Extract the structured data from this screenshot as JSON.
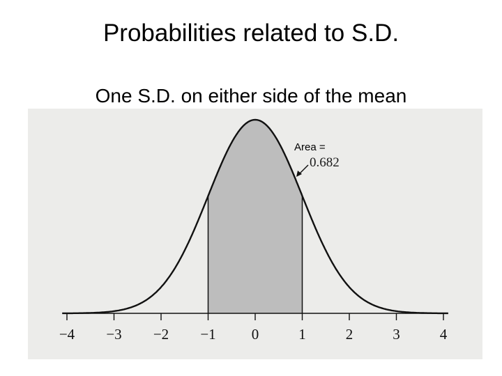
{
  "slide": {
    "title": "Probabilities related to S.D.",
    "subtitle": "One S.D. on either side of the mean"
  },
  "annotation": {
    "area_label": "Area =",
    "area_value": "0.682"
  },
  "chart_data": {
    "type": "area",
    "curve": "standard normal density",
    "shaded_interval": [
      -1,
      1
    ],
    "shaded_area": 0.682,
    "x_ticks": [
      -4,
      -3,
      -2,
      -1,
      0,
      1,
      2,
      3,
      4
    ],
    "x_tick_labels": [
      "−4",
      "−3",
      "−2",
      "−1",
      "0",
      "1",
      "2",
      "3",
      "4"
    ],
    "xlim": [
      -4.1,
      4.1
    ],
    "grid": false
  },
  "colors": {
    "curve": "#111111",
    "shade": "#bdbdbd",
    "scan_background": "#ececea"
  }
}
